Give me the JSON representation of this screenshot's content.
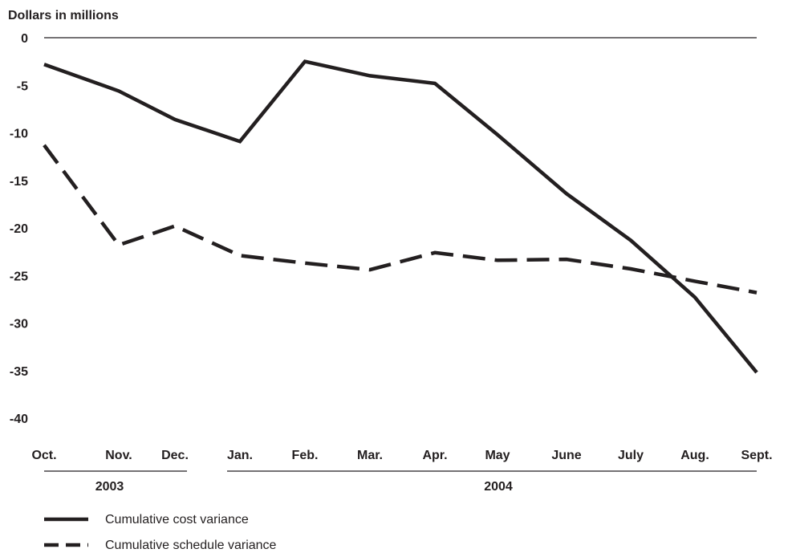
{
  "chart_data": {
    "type": "line",
    "ylabel": "Dollars in millions",
    "ylim": [
      -40,
      0
    ],
    "yticks": [
      0,
      -5,
      -10,
      -15,
      -20,
      -25,
      -30,
      -35,
      -40
    ],
    "ytick_labels": [
      "0",
      "-5",
      "-10",
      "-15",
      "-20",
      "-25",
      "-30",
      "-35",
      "-40"
    ],
    "categories": [
      "Oct.",
      "Nov.",
      "Dec.",
      "Jan.",
      "Feb.",
      "Mar.",
      "Apr.",
      "May",
      "June",
      "July",
      "Aug.",
      "Sept."
    ],
    "year_groups": [
      {
        "label": "2003",
        "from": 0,
        "to": 2
      },
      {
        "label": "2004",
        "from": 3,
        "to": 11
      }
    ],
    "series": [
      {
        "name": "Cumulative cost variance",
        "style": "solid",
        "values": [
          -2.8,
          -5.6,
          -8.6,
          -10.9,
          -2.5,
          -4.0,
          -4.8,
          -10.2,
          -16.4,
          -21.3,
          -27.3,
          -35.2
        ]
      },
      {
        "name": "Cumulative schedule variance",
        "style": "dashed",
        "values": [
          -11.3,
          -21.8,
          -19.8,
          -22.9,
          -23.7,
          -24.4,
          -22.6,
          -23.4,
          -23.3,
          -24.3,
          -25.6,
          -26.8
        ]
      }
    ],
    "grid": false,
    "legend": "bottom-left",
    "colors": {
      "line": "#231f20"
    }
  }
}
